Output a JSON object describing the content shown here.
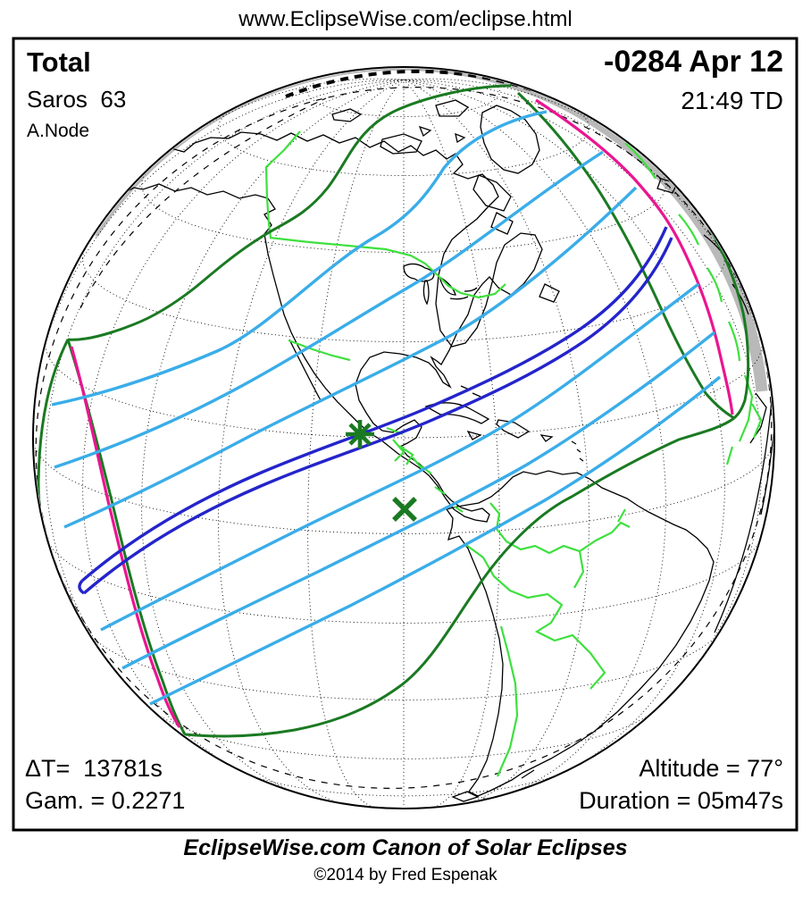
{
  "header": {
    "url": "www.EclipseWise.com/eclipse.html"
  },
  "panel": {
    "eclipse_type": "Total",
    "saros": "Saros  63",
    "node": "A.Node",
    "date": "-0284 Apr 12",
    "time": "21:49 TD",
    "delta_t": "ΔT=  13781s",
    "gamma": "Gam. = 0.2271",
    "altitude": "Altitude = 77°",
    "duration": "Duration = 05m47s"
  },
  "footer": {
    "title": "EclipseWise.com Canon of Solar Eclipses",
    "copyright": "©2014 by Fred Espenak"
  },
  "map": {
    "projection": "orthographic-globe",
    "markers": {
      "greatest_eclipse": "asterisk",
      "sub_solar_point": "x"
    },
    "colors": {
      "umbra_path": "#2424cb",
      "magnitude_contours": "#3aade8",
      "penumbra_limits": "#1a7a22",
      "sunrise_sunset_curves": "#ea1590",
      "country_borders": "#3ee03e",
      "coastlines": "#000000",
      "night_shading": "#b9b9b9"
    }
  }
}
